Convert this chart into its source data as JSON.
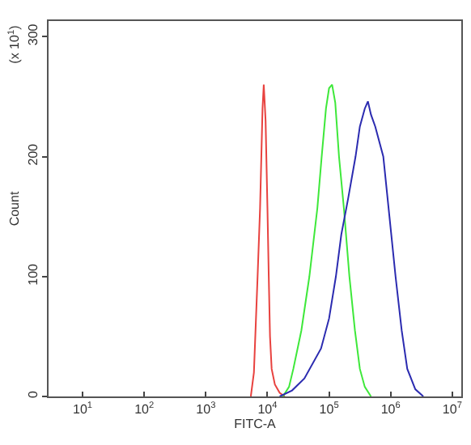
{
  "chart_data": {
    "type": "line",
    "xlabel": "FITC-A",
    "ylabel": "Count",
    "annotations": [
      "(x 10$^{1}$)"
    ],
    "log": "x",
    "marker": "none",
    "line_style": "solid",
    "xlim": [
      2.8,
      14000000
    ],
    "xticks": [
      {
        "value": 10,
        "label": "10$^{1}$"
      },
      {
        "value": 100,
        "label": "10$^{2}$"
      },
      {
        "value": 1000,
        "label": "10$^{3}$"
      },
      {
        "value": 10000,
        "label": "10$^{4}$"
      },
      {
        "value": 100000,
        "label": "10$^{5}$"
      },
      {
        "value": 1000000,
        "label": "10$^{6}$"
      },
      {
        "value": 10000000,
        "label": "10$^{7}$"
      }
    ],
    "ylim": [
      0,
      313
    ],
    "yticks": [
      0,
      100,
      200,
      300
    ],
    "series": [
      {
        "color": "#e8423f",
        "x": [
          5370,
          6030,
          6920,
          7590,
          8320,
          8710,
          9330,
          10000,
          10500,
          11000,
          11700,
          13200,
          15800,
          19100
        ],
        "values": [
          0,
          20,
          100,
          157,
          240,
          260,
          230,
          157,
          100,
          50,
          23,
          10,
          3,
          0
        ]
      },
      {
        "color": "#3ee83a",
        "x": [
          17800,
          22400,
          26300,
          35500,
          47900,
          64600,
          75900,
          89100,
          100000,
          112000,
          126000,
          145000,
          174000,
          214000,
          263000,
          316000,
          380000,
          479000
        ],
        "values": [
          0,
          8,
          23,
          55,
          100,
          157,
          200,
          240,
          257,
          260,
          245,
          200,
          157,
          100,
          55,
          23,
          8,
          0
        ]
      },
      {
        "color": "#2b2bb0",
        "x": [
          15800,
          25100,
          39800,
          74100,
          100000,
          129000,
          158000,
          204000,
          269000,
          316000,
          380000,
          427000,
          479000,
          562000,
          759000,
          955000,
          1200000,
          1510000,
          1860000,
          2510000,
          3390000
        ],
        "values": [
          0,
          5,
          15,
          40,
          65,
          100,
          135,
          165,
          200,
          225,
          240,
          246,
          235,
          225,
          200,
          150,
          100,
          55,
          23,
          6,
          0
        ]
      }
    ]
  }
}
